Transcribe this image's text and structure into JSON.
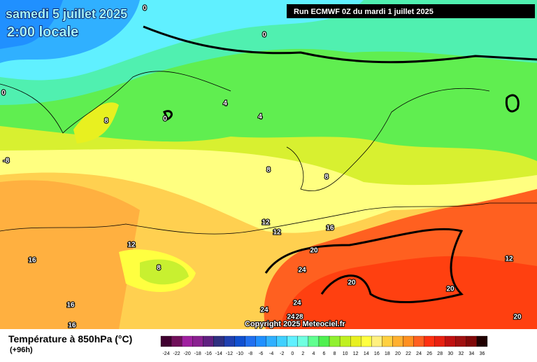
{
  "header": {
    "title": "samedi 5 juillet 2025",
    "subtitle": "2:00 locale",
    "run": "Run ECMWF 0Z du mardi 1 juillet 2025"
  },
  "map": {
    "contour_labels": [
      0,
      0,
      0,
      4,
      0,
      4,
      8,
      -8,
      8,
      8,
      12,
      12,
      16,
      12,
      20,
      16,
      8,
      24,
      20,
      12,
      20,
      16,
      24,
      24,
      24,
      28,
      20,
      16
    ],
    "copyright": "Copyright 2025 Meteociel.fr"
  },
  "legend": {
    "title": "Température à 850hPa (°C)",
    "lead_time": "(+96h)",
    "labels": [
      -24,
      -22,
      -20,
      -18,
      -16,
      -14,
      -12,
      -10,
      -8,
      -6,
      -4,
      -2,
      0,
      2,
      4,
      6,
      8,
      10,
      12,
      14,
      16,
      18,
      20,
      22,
      24,
      26,
      28,
      30,
      32,
      34,
      36
    ],
    "colors": [
      "#400030",
      "#70105a",
      "#a020a0",
      "#8a2090",
      "#602080",
      "#303080",
      "#2040b0",
      "#1050d0",
      "#2070f0",
      "#2090ff",
      "#30b0ff",
      "#40d0ff",
      "#60f0ff",
      "#70ffe0",
      "#60ff90",
      "#50f050",
      "#90f030",
      "#c0f020",
      "#e8f020",
      "#ffff40",
      "#fff080",
      "#ffd040",
      "#ffb030",
      "#ff9020",
      "#ff6020",
      "#ff3010",
      "#e82010",
      "#c01010",
      "#a01010",
      "#800808",
      "#200000"
    ]
  }
}
